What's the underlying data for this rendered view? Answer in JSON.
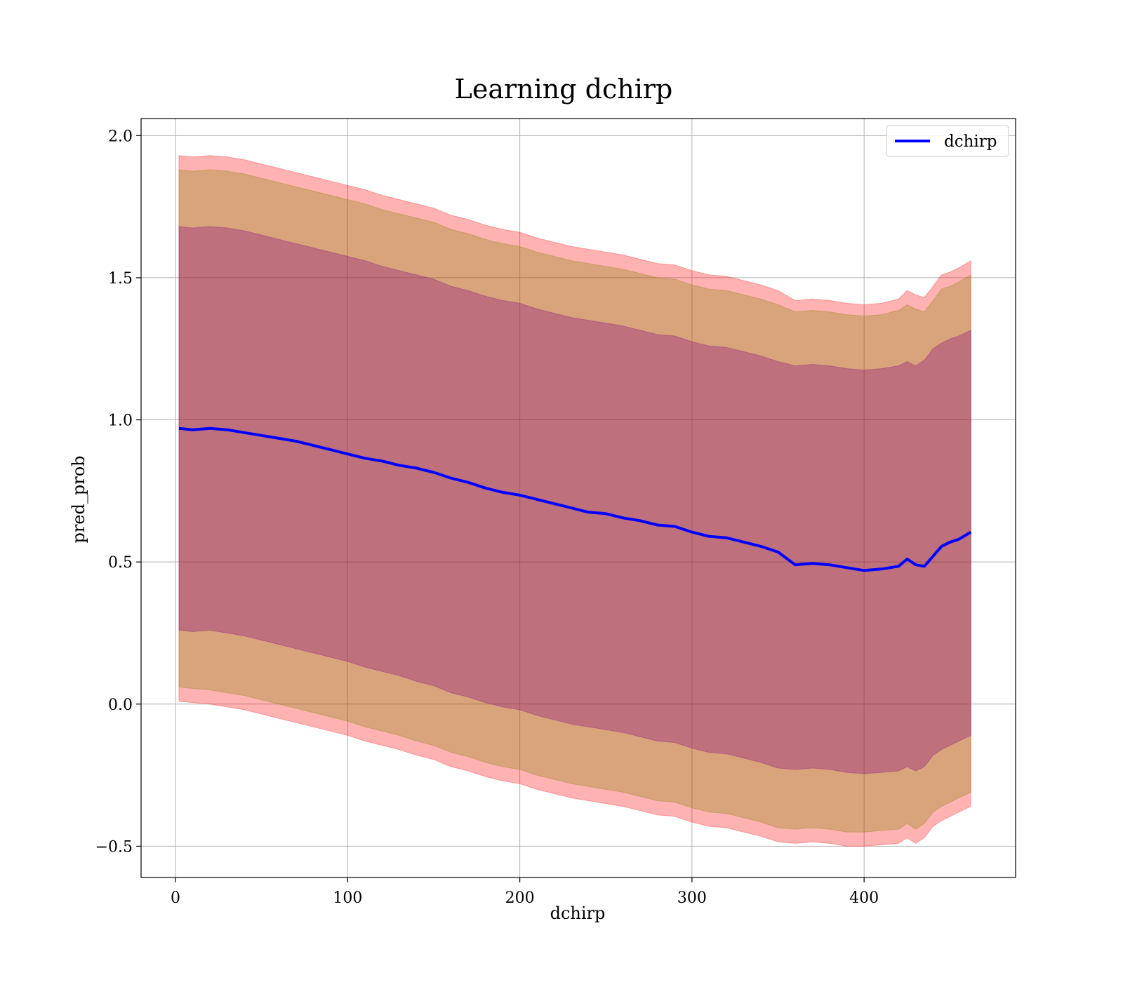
{
  "chart_data": {
    "type": "line",
    "title": "Learning dchirp",
    "xlabel": "dchirp",
    "ylabel": "pred_prob",
    "xlim": [
      -20,
      488
    ],
    "ylim": [
      -0.61,
      2.06
    ],
    "x_ticks": [
      0,
      100,
      200,
      300,
      400
    ],
    "x_tick_labels": [
      "0",
      "100",
      "200",
      "300",
      "400"
    ],
    "y_ticks": [
      -0.5,
      0.0,
      0.5,
      1.0,
      1.5,
      2.0
    ],
    "y_tick_labels": [
      "−0.5",
      "0.0",
      "0.5",
      "1.0",
      "1.5",
      "2.0"
    ],
    "grid": true,
    "legend": {
      "location": "top-right",
      "entries": [
        "dchirp"
      ]
    },
    "series": [
      {
        "name": "dchirp",
        "color": "#0000ff",
        "x": [
          2,
          10,
          20,
          30,
          40,
          50,
          60,
          70,
          80,
          90,
          100,
          110,
          120,
          130,
          140,
          150,
          160,
          170,
          180,
          190,
          200,
          210,
          220,
          230,
          240,
          250,
          260,
          270,
          280,
          290,
          300,
          310,
          320,
          330,
          340,
          350,
          360,
          370,
          380,
          390,
          400,
          410,
          420,
          425,
          430,
          435,
          440,
          445,
          450,
          455,
          462
        ],
        "y": [
          0.97,
          0.965,
          0.97,
          0.965,
          0.955,
          0.945,
          0.935,
          0.925,
          0.91,
          0.895,
          0.88,
          0.865,
          0.855,
          0.84,
          0.83,
          0.815,
          0.795,
          0.78,
          0.76,
          0.745,
          0.735,
          0.72,
          0.705,
          0.69,
          0.675,
          0.67,
          0.655,
          0.645,
          0.63,
          0.625,
          0.605,
          0.59,
          0.585,
          0.57,
          0.555,
          0.535,
          0.49,
          0.495,
          0.49,
          0.48,
          0.47,
          0.475,
          0.485,
          0.51,
          0.49,
          0.485,
          0.52,
          0.555,
          0.57,
          0.58,
          0.605
        ]
      }
    ],
    "bands": [
      {
        "color": "#ff0000",
        "opacity": 0.3,
        "x": [
          2,
          10,
          20,
          30,
          40,
          50,
          60,
          70,
          80,
          90,
          100,
          110,
          120,
          130,
          140,
          150,
          160,
          170,
          180,
          190,
          200,
          210,
          220,
          230,
          240,
          250,
          260,
          270,
          280,
          290,
          300,
          310,
          320,
          330,
          340,
          350,
          360,
          370,
          380,
          390,
          400,
          410,
          420,
          425,
          430,
          435,
          440,
          445,
          450,
          455,
          462
        ],
        "upper": [
          1.93,
          1.925,
          1.93,
          1.925,
          1.915,
          1.9,
          1.885,
          1.87,
          1.855,
          1.84,
          1.825,
          1.81,
          1.79,
          1.775,
          1.76,
          1.745,
          1.72,
          1.705,
          1.685,
          1.67,
          1.66,
          1.64,
          1.625,
          1.61,
          1.6,
          1.59,
          1.58,
          1.565,
          1.55,
          1.545,
          1.525,
          1.51,
          1.505,
          1.49,
          1.475,
          1.455,
          1.42,
          1.425,
          1.42,
          1.41,
          1.405,
          1.41,
          1.425,
          1.455,
          1.44,
          1.43,
          1.47,
          1.51,
          1.52,
          1.535,
          1.56
        ],
        "lower": [
          0.01,
          0.005,
          0.0,
          -0.01,
          -0.02,
          -0.035,
          -0.05,
          -0.065,
          -0.08,
          -0.095,
          -0.11,
          -0.13,
          -0.145,
          -0.16,
          -0.18,
          -0.195,
          -0.22,
          -0.235,
          -0.255,
          -0.27,
          -0.28,
          -0.3,
          -0.315,
          -0.33,
          -0.34,
          -0.35,
          -0.36,
          -0.375,
          -0.39,
          -0.395,
          -0.415,
          -0.43,
          -0.435,
          -0.45,
          -0.465,
          -0.485,
          -0.49,
          -0.485,
          -0.49,
          -0.5,
          -0.5,
          -0.495,
          -0.49,
          -0.47,
          -0.49,
          -0.47,
          -0.43,
          -0.41,
          -0.395,
          -0.38,
          -0.36
        ]
      },
      {
        "color": "#808000",
        "opacity": 0.3,
        "x": [
          2,
          10,
          20,
          30,
          40,
          50,
          60,
          70,
          80,
          90,
          100,
          110,
          120,
          130,
          140,
          150,
          160,
          170,
          180,
          190,
          200,
          210,
          220,
          230,
          240,
          250,
          260,
          270,
          280,
          290,
          300,
          310,
          320,
          330,
          340,
          350,
          360,
          370,
          380,
          390,
          400,
          410,
          420,
          425,
          430,
          435,
          440,
          445,
          450,
          455,
          462
        ],
        "upper": [
          1.88,
          1.875,
          1.88,
          1.875,
          1.865,
          1.85,
          1.835,
          1.82,
          1.805,
          1.79,
          1.775,
          1.76,
          1.74,
          1.725,
          1.71,
          1.695,
          1.67,
          1.655,
          1.635,
          1.62,
          1.61,
          1.59,
          1.575,
          1.56,
          1.55,
          1.54,
          1.53,
          1.515,
          1.5,
          1.495,
          1.475,
          1.46,
          1.455,
          1.44,
          1.425,
          1.405,
          1.38,
          1.385,
          1.38,
          1.37,
          1.365,
          1.37,
          1.385,
          1.405,
          1.39,
          1.38,
          1.42,
          1.46,
          1.47,
          1.485,
          1.51
        ],
        "lower": [
          0.06,
          0.055,
          0.05,
          0.04,
          0.03,
          0.015,
          0.0,
          -0.015,
          -0.03,
          -0.045,
          -0.06,
          -0.08,
          -0.095,
          -0.11,
          -0.13,
          -0.145,
          -0.17,
          -0.185,
          -0.205,
          -0.22,
          -0.23,
          -0.25,
          -0.265,
          -0.28,
          -0.29,
          -0.3,
          -0.31,
          -0.325,
          -0.34,
          -0.345,
          -0.365,
          -0.38,
          -0.385,
          -0.4,
          -0.415,
          -0.435,
          -0.44,
          -0.435,
          -0.44,
          -0.45,
          -0.45,
          -0.445,
          -0.44,
          -0.42,
          -0.44,
          -0.42,
          -0.38,
          -0.36,
          -0.345,
          -0.33,
          -0.31
        ]
      },
      {
        "color": "#800080",
        "opacity": 0.3,
        "x": [
          2,
          10,
          20,
          30,
          40,
          50,
          60,
          70,
          80,
          90,
          100,
          110,
          120,
          130,
          140,
          150,
          160,
          170,
          180,
          190,
          200,
          210,
          220,
          230,
          240,
          250,
          260,
          270,
          280,
          290,
          300,
          310,
          320,
          330,
          340,
          350,
          360,
          370,
          380,
          390,
          400,
          410,
          420,
          425,
          430,
          435,
          440,
          445,
          450,
          455,
          462
        ],
        "upper": [
          1.68,
          1.675,
          1.68,
          1.675,
          1.665,
          1.65,
          1.635,
          1.62,
          1.605,
          1.59,
          1.575,
          1.56,
          1.54,
          1.525,
          1.51,
          1.495,
          1.47,
          1.455,
          1.435,
          1.42,
          1.41,
          1.39,
          1.375,
          1.36,
          1.35,
          1.34,
          1.33,
          1.315,
          1.3,
          1.295,
          1.275,
          1.26,
          1.255,
          1.24,
          1.225,
          1.205,
          1.19,
          1.195,
          1.19,
          1.18,
          1.175,
          1.18,
          1.19,
          1.205,
          1.19,
          1.21,
          1.25,
          1.27,
          1.285,
          1.295,
          1.315
        ],
        "lower": [
          0.26,
          0.255,
          0.26,
          0.25,
          0.24,
          0.225,
          0.21,
          0.195,
          0.18,
          0.165,
          0.15,
          0.13,
          0.115,
          0.1,
          0.08,
          0.065,
          0.04,
          0.025,
          0.005,
          -0.01,
          -0.02,
          -0.04,
          -0.055,
          -0.07,
          -0.08,
          -0.09,
          -0.1,
          -0.115,
          -0.13,
          -0.135,
          -0.155,
          -0.17,
          -0.175,
          -0.19,
          -0.205,
          -0.225,
          -0.23,
          -0.225,
          -0.23,
          -0.24,
          -0.245,
          -0.24,
          -0.235,
          -0.22,
          -0.235,
          -0.22,
          -0.18,
          -0.16,
          -0.145,
          -0.13,
          -0.11
        ]
      }
    ]
  }
}
